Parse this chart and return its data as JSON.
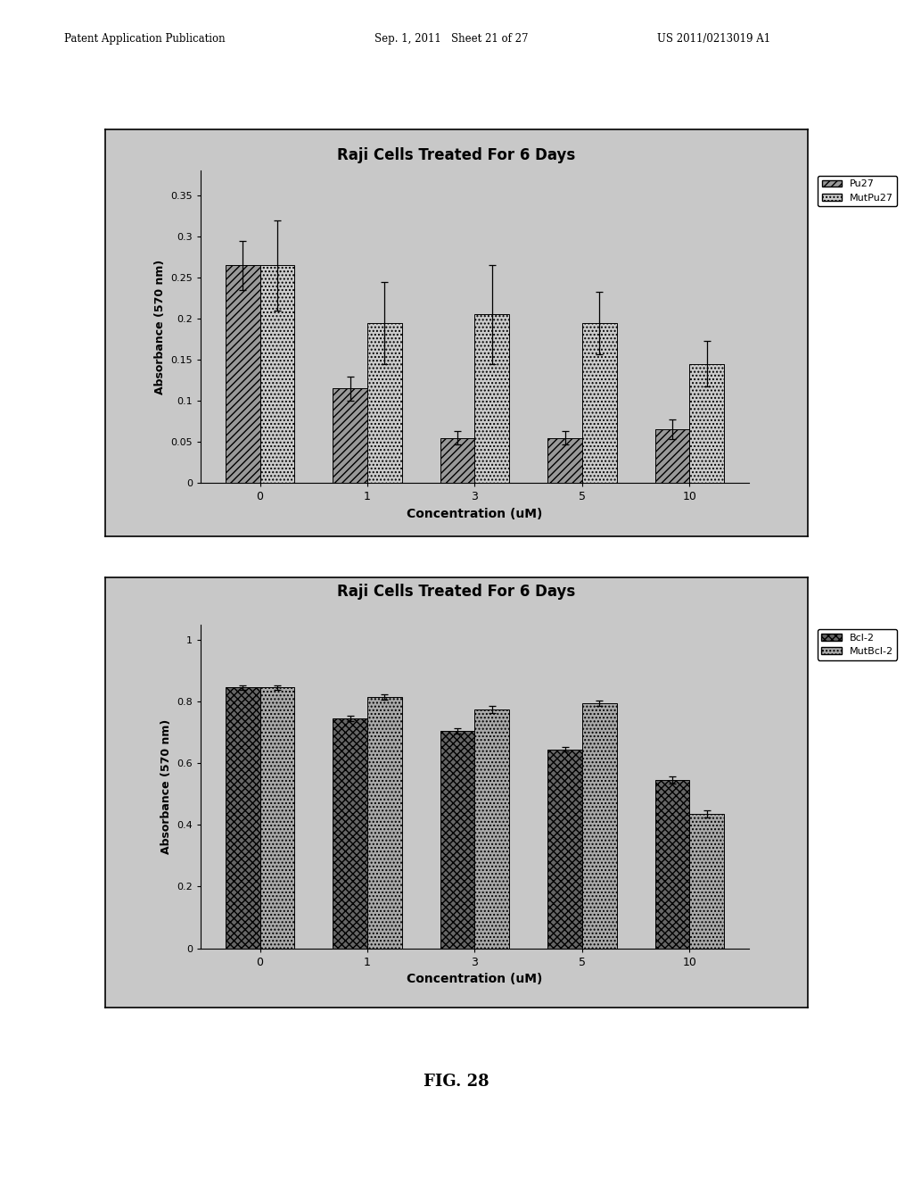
{
  "page_header_left": "Patent Application Publication",
  "page_header_mid": "Sep. 1, 2011   Sheet 21 of 27",
  "page_header_right": "US 2011/0213019 A1",
  "fig_label": "FIG. 28",
  "chart1": {
    "title": "Raji Cells Treated For 6 Days",
    "xlabel": "Concentration (uM)",
    "ylabel": "Absorbance (570 nm)",
    "x_labels": [
      "0",
      "1",
      "3",
      "5",
      "10"
    ],
    "series1_label": "Pu27",
    "series2_label": "MutPu27",
    "series1_values": [
      0.265,
      0.115,
      0.055,
      0.055,
      0.065
    ],
    "series2_values": [
      0.265,
      0.195,
      0.205,
      0.195,
      0.145
    ],
    "series1_errors": [
      0.03,
      0.015,
      0.008,
      0.008,
      0.012
    ],
    "series2_errors": [
      0.055,
      0.05,
      0.06,
      0.038,
      0.028
    ],
    "ylim": [
      0,
      0.38
    ],
    "yticks": [
      0,
      0.05,
      0.1,
      0.15,
      0.2,
      0.25,
      0.3,
      0.35
    ],
    "ytick_labels": [
      "0",
      "0.05",
      "0.1",
      "0.15",
      "0.2",
      "0.25",
      "0.3",
      "0.35"
    ],
    "series1_hatch": "////",
    "series2_hatch": "....",
    "series1_facecolor": "#999999",
    "series2_facecolor": "#cccccc",
    "bg_color": "#c8c8c8",
    "bar_width": 0.32
  },
  "chart2": {
    "title": "Raji Cells Treated For 6 Days",
    "xlabel": "Concentration (uM)",
    "ylabel": "Absorbance (570 nm)",
    "x_labels": [
      "0",
      "1",
      "3",
      "5",
      "10"
    ],
    "series1_label": "Bcl-2",
    "series2_label": "MutBcl-2",
    "series1_values": [
      0.845,
      0.745,
      0.705,
      0.645,
      0.545
    ],
    "series2_values": [
      0.845,
      0.815,
      0.775,
      0.795,
      0.435
    ],
    "series1_errors": [
      0.008,
      0.008,
      0.008,
      0.008,
      0.012
    ],
    "series2_errors": [
      0.008,
      0.008,
      0.012,
      0.008,
      0.012
    ],
    "ylim": [
      0,
      1.05
    ],
    "yticks": [
      0,
      0.2,
      0.4,
      0.6,
      0.8,
      1.0
    ],
    "ytick_labels": [
      "0",
      "0.2",
      "0.4",
      "0.6",
      "0.8",
      "1"
    ],
    "series1_hatch": "xxxx",
    "series2_hatch": "....",
    "series1_facecolor": "#666666",
    "series2_facecolor": "#aaaaaa",
    "bg_color": "#c8c8c8",
    "bar_width": 0.32
  }
}
